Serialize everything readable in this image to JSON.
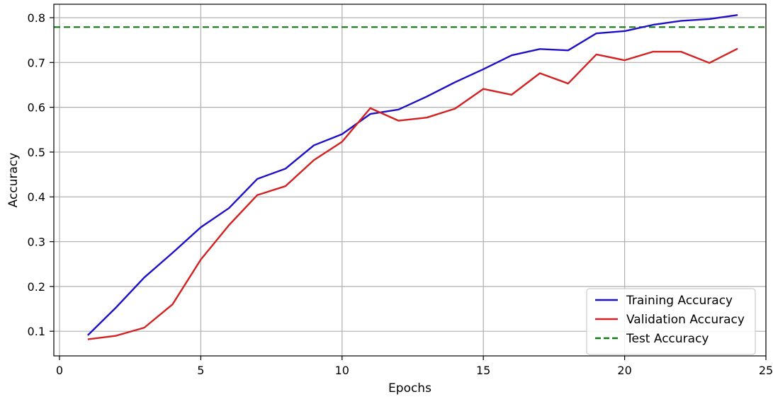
{
  "chart_data": {
    "type": "line",
    "title": "",
    "xlabel": "Epochs",
    "ylabel": "Accuracy",
    "xlim": [
      -0.2,
      25.0
    ],
    "ylim": [
      0.045,
      0.83
    ],
    "grid": true,
    "legend_position": "lower-right",
    "x_ticks": [
      0,
      5,
      10,
      15,
      20,
      25
    ],
    "x_tick_labels": [
      "0",
      "5",
      "10",
      "15",
      "20",
      "25"
    ],
    "y_ticks": [
      0.1,
      0.2,
      0.3,
      0.4,
      0.5,
      0.6,
      0.7,
      0.8
    ],
    "y_tick_labels": [
      "0.1",
      "0.2",
      "0.3",
      "0.4",
      "0.5",
      "0.6",
      "0.7",
      "0.8"
    ],
    "x": [
      1,
      2,
      3,
      4,
      5,
      6,
      7,
      8,
      9,
      10,
      11,
      12,
      13,
      14,
      15,
      16,
      17,
      18,
      19,
      20,
      21,
      22,
      23,
      24
    ],
    "series": [
      {
        "name": "Training Accuracy",
        "color": "#1f10c8",
        "style": "solid",
        "values": [
          0.091,
          0.153,
          0.22,
          0.275,
          0.332,
          0.375,
          0.44,
          0.463,
          0.515,
          0.54,
          0.585,
          0.595,
          0.624,
          0.656,
          0.685,
          0.716,
          0.73,
          0.727,
          0.765,
          0.77,
          0.784,
          0.793,
          0.797,
          0.806
        ]
      },
      {
        "name": "Validation Accuracy",
        "color": "#d42020",
        "style": "solid",
        "values": [
          0.082,
          0.09,
          0.108,
          0.16,
          0.26,
          0.337,
          0.404,
          0.424,
          0.482,
          0.523,
          0.598,
          0.57,
          0.577,
          0.597,
          0.641,
          0.628,
          0.676,
          0.653,
          0.718,
          0.705,
          0.724,
          0.724,
          0.699,
          0.731
        ]
      }
    ],
    "reference_lines": [
      {
        "name": "Test Accuracy",
        "color": "#0f7a0f",
        "style": "dashed",
        "y": 0.779
      }
    ]
  }
}
